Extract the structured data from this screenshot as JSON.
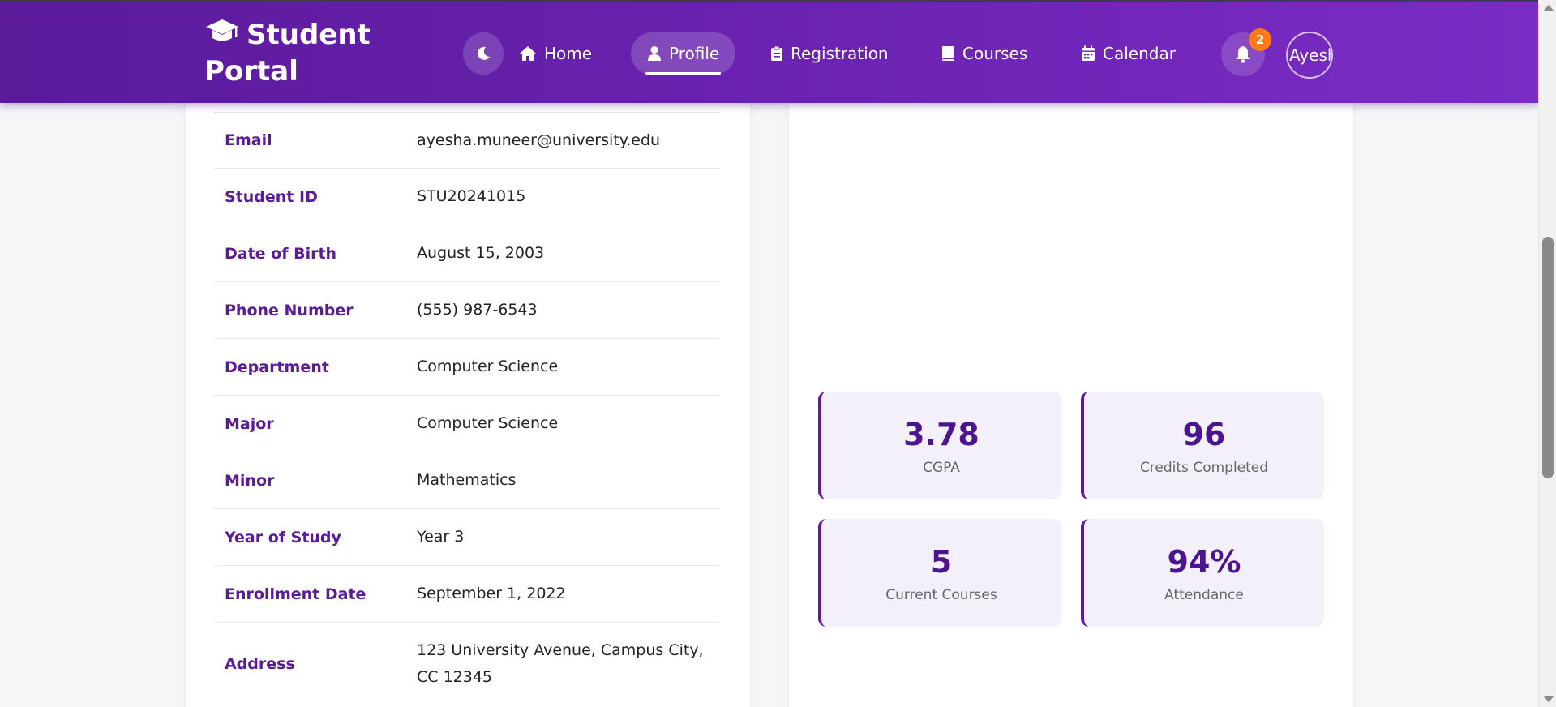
{
  "header": {
    "brand": "Student Portal",
    "nav": {
      "home": "Home",
      "profile": "Profile",
      "registration": "Registration",
      "courses": "Courses",
      "calendar": "Calendar"
    },
    "notification_count": "2",
    "avatar_alt": "Ayesha"
  },
  "profile": {
    "rows": [
      {
        "label": "Email",
        "value": "ayesha.muneer@university.edu"
      },
      {
        "label": "Student ID",
        "value": "STU20241015"
      },
      {
        "label": "Date of Birth",
        "value": "August 15, 2003"
      },
      {
        "label": "Phone Number",
        "value": "(555) 987-6543"
      },
      {
        "label": "Department",
        "value": "Computer Science"
      },
      {
        "label": "Major",
        "value": "Computer Science"
      },
      {
        "label": "Minor",
        "value": "Mathematics"
      },
      {
        "label": "Year of Study",
        "value": "Year 3"
      },
      {
        "label": "Enrollment Date",
        "value": "September 1, 2022"
      },
      {
        "label": "Address",
        "value": "123 University Avenue, Campus City, CC 12345"
      }
    ]
  },
  "stats": [
    {
      "value": "3.78",
      "label": "CGPA"
    },
    {
      "value": "96",
      "label": "Credits Completed"
    },
    {
      "value": "5",
      "label": "Current Courses"
    },
    {
      "value": "94%",
      "label": "Attendance"
    }
  ],
  "colors": {
    "primary": "#5a1a9a",
    "header_gradient_end": "#7a2cc4",
    "badge": "#ff7a1a",
    "stat_bg": "#f4f0f9"
  },
  "icons": {
    "brand": "graduation-cap-icon",
    "theme": "moon-icon",
    "home": "home-icon",
    "profile": "user-icon",
    "registration": "clipboard-icon",
    "courses": "book-icon",
    "calendar": "calendar-icon",
    "notifications": "bell-icon"
  }
}
